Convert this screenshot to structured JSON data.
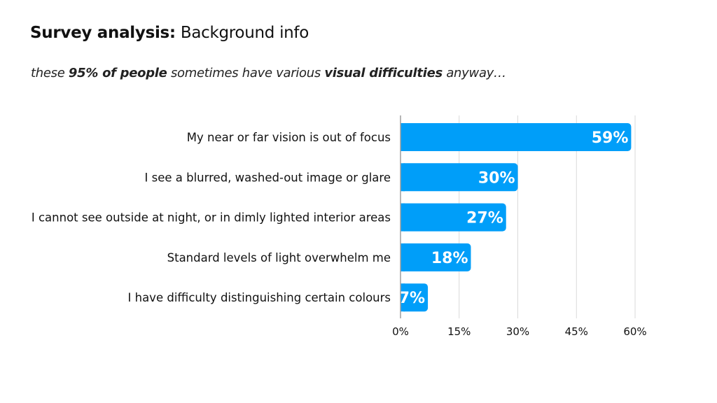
{
  "title": {
    "bold": "Survey analysis:",
    "normal": " Background info"
  },
  "subtitle": [
    {
      "text": "these ",
      "bold": false
    },
    {
      "text": "95% of people",
      "bold": true
    },
    {
      "text": " sometimes have various ",
      "bold": false
    },
    {
      "text": "visual difficulties",
      "bold": true
    },
    {
      "text": " anyway…",
      "bold": false
    }
  ],
  "chart_data": {
    "type": "bar",
    "orientation": "horizontal",
    "categories": [
      "My near or far vision is out of focus",
      "I see a blurred, washed-out image or glare",
      "I cannot see outside at night, or in dimly lighted interior areas",
      "Standard levels of light overwhelm me",
      "I have difficulty distinguishing certain colours"
    ],
    "values": [
      59,
      30,
      27,
      18,
      7
    ],
    "data_labels": [
      "59%",
      "30%",
      "27%",
      "18%",
      "7%"
    ],
    "xlim": [
      0,
      60
    ],
    "xticks": [
      0,
      15,
      30,
      45,
      60
    ],
    "xtick_labels": [
      "0%",
      "15%",
      "30%",
      "45%",
      "60%"
    ],
    "grid": true,
    "bar_color": "#009ef9"
  }
}
